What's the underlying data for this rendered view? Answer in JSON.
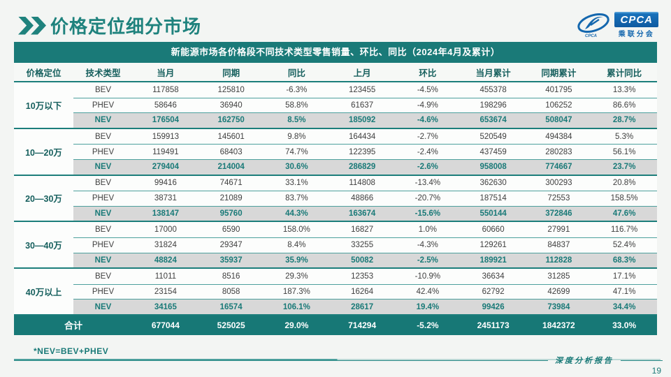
{
  "page": {
    "title": "价格定位细分市场",
    "footnote": "*NEV=BEV+PHEV",
    "footer_label": "深度分析报告",
    "page_number": "19"
  },
  "logo": {
    "icon": "cpca-swoosh-icon",
    "cpca_label": "CPCA",
    "cn_label": "乘联分会"
  },
  "colors": {
    "teal_primary": "#1a7a78",
    "teal_dark_text": "#17605e",
    "nev_row_bg": "#d8d8d8",
    "total_row_bg": "#177876",
    "logo_blue": "#1467ae",
    "body_text": "#3f3f3f"
  },
  "table": {
    "title": "新能源市场各价格段不同技术类型零售销量、环比、同比（2024年4月及累计）",
    "columns": [
      "价格定位",
      "技术类型",
      "当月",
      "同期",
      "同比",
      "上月",
      "环比",
      "当月累计",
      "同期累计",
      "累计同比"
    ],
    "groups": [
      {
        "label": "10万以下",
        "rows": [
          {
            "type": "BEV",
            "values": [
              "117858",
              "125810",
              "-6.3%",
              "123455",
              "-4.5%",
              "455378",
              "401795",
              "13.3%"
            ]
          },
          {
            "type": "PHEV",
            "values": [
              "58646",
              "36940",
              "58.8%",
              "61637",
              "-4.9%",
              "198296",
              "106252",
              "86.6%"
            ]
          },
          {
            "type": "NEV",
            "values": [
              "176504",
              "162750",
              "8.5%",
              "185092",
              "-4.6%",
              "653674",
              "508047",
              "28.7%"
            ]
          }
        ]
      },
      {
        "label": "10—20万",
        "rows": [
          {
            "type": "BEV",
            "values": [
              "159913",
              "145601",
              "9.8%",
              "164434",
              "-2.7%",
              "520549",
              "494384",
              "5.3%"
            ]
          },
          {
            "type": "PHEV",
            "values": [
              "119491",
              "68403",
              "74.7%",
              "122395",
              "-2.4%",
              "437459",
              "280283",
              "56.1%"
            ]
          },
          {
            "type": "NEV",
            "values": [
              "279404",
              "214004",
              "30.6%",
              "286829",
              "-2.6%",
              "958008",
              "774667",
              "23.7%"
            ]
          }
        ]
      },
      {
        "label": "20—30万",
        "rows": [
          {
            "type": "BEV",
            "values": [
              "99416",
              "74671",
              "33.1%",
              "114808",
              "-13.4%",
              "362630",
              "300293",
              "20.8%"
            ]
          },
          {
            "type": "PHEV",
            "values": [
              "38731",
              "21089",
              "83.7%",
              "48866",
              "-20.7%",
              "187514",
              "72553",
              "158.5%"
            ]
          },
          {
            "type": "NEV",
            "values": [
              "138147",
              "95760",
              "44.3%",
              "163674",
              "-15.6%",
              "550144",
              "372846",
              "47.6%"
            ]
          }
        ]
      },
      {
        "label": "30—40万",
        "rows": [
          {
            "type": "BEV",
            "values": [
              "17000",
              "6590",
              "158.0%",
              "16827",
              "1.0%",
              "60660",
              "27991",
              "116.7%"
            ]
          },
          {
            "type": "PHEV",
            "values": [
              "31824",
              "29347",
              "8.4%",
              "33255",
              "-4.3%",
              "129261",
              "84837",
              "52.4%"
            ]
          },
          {
            "type": "NEV",
            "values": [
              "48824",
              "35937",
              "35.9%",
              "50082",
              "-2.5%",
              "189921",
              "112828",
              "68.3%"
            ]
          }
        ]
      },
      {
        "label": "40万以上",
        "rows": [
          {
            "type": "BEV",
            "values": [
              "11011",
              "8516",
              "29.3%",
              "12353",
              "-10.9%",
              "36634",
              "31285",
              "17.1%"
            ]
          },
          {
            "type": "PHEV",
            "values": [
              "23154",
              "8058",
              "187.3%",
              "16264",
              "42.4%",
              "62792",
              "42699",
              "47.1%"
            ]
          },
          {
            "type": "NEV",
            "values": [
              "34165",
              "16574",
              "106.1%",
              "28617",
              "19.4%",
              "99426",
              "73984",
              "34.4%"
            ]
          }
        ]
      }
    ],
    "total": {
      "label": "合计",
      "values": [
        "677044",
        "525025",
        "29.0%",
        "714294",
        "-5.2%",
        "2451173",
        "1842372",
        "33.0%"
      ]
    }
  }
}
